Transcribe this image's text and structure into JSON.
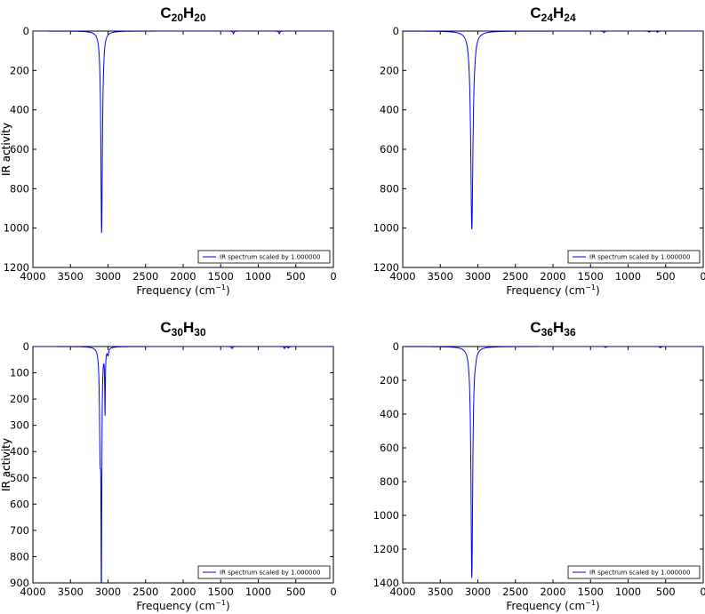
{
  "chart_data": [
    {
      "type": "line",
      "title": "C20H20",
      "title_parts": {
        "e1": "C",
        "s1": "20",
        "e2": "H",
        "s2": "20"
      },
      "xlabel": "Frequency (cm−1)",
      "xlabel_parts": {
        "pre": "Frequency (cm",
        "sup": "−1",
        "post": ")"
      },
      "ylabel": "IR activity",
      "xlim": [
        4000,
        0
      ],
      "ylim": [
        1200,
        0
      ],
      "xticks": [
        4000,
        3500,
        3000,
        2500,
        2000,
        1500,
        1000,
        500,
        0
      ],
      "yticks": [
        0,
        200,
        400,
        600,
        800,
        1000,
        1200
      ],
      "legend": {
        "label": "IR spectrum scaled by 1.000000",
        "position": "lower-right"
      },
      "series": [
        {
          "name": "IR spectrum scaled by 1.000000",
          "color": "#0000ff",
          "peaks": [
            {
              "x": 3085,
              "y": 1022,
              "width": 12
            },
            {
              "x": 3060,
              "y": 20,
              "width": 10
            },
            {
              "x": 1330,
              "y": 14,
              "width": 8
            },
            {
              "x": 720,
              "y": 14,
              "width": 8
            }
          ]
        }
      ]
    },
    {
      "type": "line",
      "title": "C24H24",
      "title_parts": {
        "e1": "C",
        "s1": "24",
        "e2": "H",
        "s2": "24"
      },
      "xlabel": "Frequency (cm−1)",
      "xlabel_parts": {
        "pre": "Frequency (cm",
        "sup": "−1",
        "post": ")"
      },
      "ylabel": "IR activity",
      "xlim": [
        4000,
        0
      ],
      "ylim": [
        1200,
        0
      ],
      "xticks": [
        4000,
        3500,
        3000,
        2500,
        2000,
        1500,
        1000,
        500,
        0
      ],
      "yticks": [
        0,
        200,
        400,
        600,
        800,
        1000,
        1200
      ],
      "legend": {
        "label": "IR spectrum scaled by 1.000000",
        "position": "lower-right"
      },
      "series": [
        {
          "name": "IR spectrum scaled by 1.000000",
          "color": "#0000ff",
          "peaks": [
            {
              "x": 3080,
              "y": 1005,
              "width": 18
            },
            {
              "x": 3040,
              "y": 15,
              "width": 10
            },
            {
              "x": 1320,
              "y": 8,
              "width": 8
            },
            {
              "x": 720,
              "y": 6,
              "width": 8
            },
            {
              "x": 610,
              "y": 6,
              "width": 8
            }
          ]
        }
      ]
    },
    {
      "type": "line",
      "title": "C30H30",
      "title_parts": {
        "e1": "C",
        "s1": "30",
        "e2": "H",
        "s2": "30"
      },
      "xlabel": "Frequency (cm−1)",
      "xlabel_parts": {
        "pre": "Frequency (cm",
        "sup": "−1",
        "post": ")"
      },
      "ylabel": "IR activity",
      "xlim": [
        4000,
        0
      ],
      "ylim": [
        900,
        0
      ],
      "xticks": [
        4000,
        3500,
        3000,
        2500,
        2000,
        1500,
        1000,
        500,
        0
      ],
      "yticks": [
        0,
        100,
        200,
        300,
        400,
        500,
        600,
        700,
        800,
        900
      ],
      "legend": {
        "label": "IR spectrum scaled by 1.000000",
        "position": "lower-right"
      },
      "series": [
        {
          "name": "IR spectrum scaled by 1.000000",
          "color": "#0000ff",
          "peaks": [
            {
              "x": 3105,
              "y": 360,
              "width": 10
            },
            {
              "x": 3088,
              "y": 870,
              "width": 6
            },
            {
              "x": 3040,
              "y": 240,
              "width": 5
            },
            {
              "x": 3000,
              "y": 25,
              "width": 10
            },
            {
              "x": 1350,
              "y": 8,
              "width": 8
            },
            {
              "x": 650,
              "y": 8,
              "width": 8
            },
            {
              "x": 600,
              "y": 6,
              "width": 8
            }
          ]
        }
      ]
    },
    {
      "type": "line",
      "title": "C36H36",
      "title_parts": {
        "e1": "C",
        "s1": "36",
        "e2": "H",
        "s2": "36"
      },
      "xlabel": "Frequency (cm−1)",
      "xlabel_parts": {
        "pre": "Frequency (cm",
        "sup": "−1",
        "post": ")"
      },
      "ylabel": "IR activity",
      "xlim": [
        4000,
        0
      ],
      "ylim": [
        1400,
        0
      ],
      "xticks": [
        4000,
        3500,
        3000,
        2500,
        2000,
        1500,
        1000,
        500,
        0
      ],
      "yticks": [
        0,
        200,
        400,
        600,
        800,
        1000,
        1200,
        1400
      ],
      "legend": {
        "label": "IR spectrum scaled by 1.000000",
        "position": "lower-right"
      },
      "series": [
        {
          "name": "IR spectrum scaled by 1.000000",
          "color": "#0000ff",
          "peaks": [
            {
              "x": 3080,
              "y": 1370,
              "width": 14
            },
            {
              "x": 3030,
              "y": 15,
              "width": 10
            },
            {
              "x": 1300,
              "y": 6,
              "width": 8
            },
            {
              "x": 570,
              "y": 8,
              "width": 8
            }
          ]
        }
      ]
    }
  ]
}
